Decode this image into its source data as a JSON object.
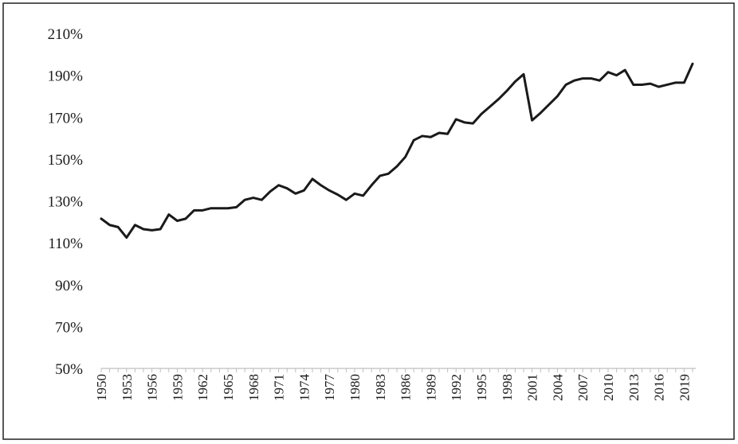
{
  "chart_data": {
    "type": "line",
    "title": "",
    "xlabel": "",
    "ylabel": "",
    "ylim": [
      50,
      210
    ],
    "yticks": [
      50,
      70,
      90,
      110,
      130,
      150,
      170,
      190,
      210
    ],
    "ytick_labels": [
      "50%",
      "70%",
      "90%",
      "110%",
      "130%",
      "150%",
      "170%",
      "190%",
      "210%"
    ],
    "xlim": [
      1950,
      2020
    ],
    "xticks": [
      1950,
      1953,
      1956,
      1959,
      1962,
      1965,
      1968,
      1971,
      1974,
      1977,
      1980,
      1983,
      1986,
      1989,
      1992,
      1995,
      1998,
      2001,
      2004,
      2007,
      2010,
      2013,
      2016,
      2019
    ],
    "xtick_labels": [
      "1950",
      "1953",
      "1956",
      "1959",
      "1962",
      "1965",
      "1968",
      "1971",
      "1974",
      "1977",
      "1980",
      "1983",
      "1986",
      "1989",
      "1992",
      "1995",
      "1998",
      "2001",
      "2004",
      "2007",
      "2010",
      "2013",
      "2016",
      "2019"
    ],
    "grid": false,
    "legend": "none",
    "line_color": "#1a1a1a",
    "series": [
      {
        "x": [
          1950,
          1951,
          1952,
          1953,
          1954,
          1955,
          1956,
          1957,
          1958,
          1959,
          1960,
          1961,
          1962,
          1963,
          1964,
          1965,
          1966,
          1967,
          1968,
          1969,
          1970,
          1971,
          1972,
          1973,
          1974,
          1975,
          1976,
          1977,
          1978,
          1979,
          1980,
          1981,
          1982,
          1983,
          1984,
          1985,
          1986,
          1987,
          1988,
          1989,
          1990,
          1991,
          1992,
          1993,
          1994,
          1995,
          1996,
          1997,
          1998,
          1999,
          2000,
          2001,
          2002,
          2003,
          2004,
          2005,
          2006,
          2007,
          2008,
          2009,
          2010,
          2011,
          2012,
          2013,
          2014,
          2015,
          2016,
          2017,
          2018,
          2019,
          2020
        ],
        "values": [
          121.5,
          118.5,
          117.5,
          112.5,
          118.5,
          116.5,
          116,
          116.5,
          123.5,
          120.5,
          121.5,
          125.5,
          125.5,
          126.5,
          126.5,
          126.5,
          127,
          130.5,
          131.5,
          130.5,
          134.5,
          137.5,
          136,
          133.5,
          135,
          140.5,
          137.5,
          135,
          133,
          130.5,
          133.5,
          132.5,
          137.5,
          142,
          143,
          146.5,
          151,
          159,
          161,
          160.5,
          162.5,
          162,
          169,
          167.5,
          167,
          171.5,
          175,
          178.5,
          182.5,
          187,
          190.5,
          168.5,
          172,
          176,
          180,
          185.5,
          187.5,
          188.5,
          188.5,
          187.5,
          191.5,
          190,
          192.5,
          185.5,
          185.5,
          186,
          184.5,
          185.5,
          186.5,
          186.5,
          195.5
        ]
      }
    ]
  }
}
